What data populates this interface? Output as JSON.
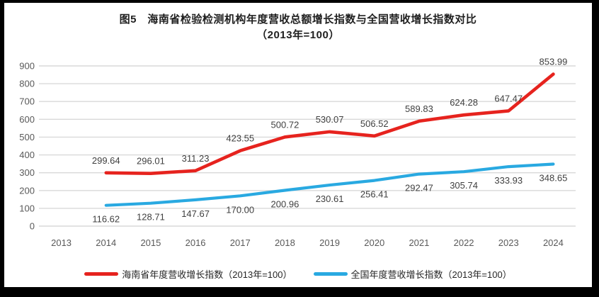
{
  "title": {
    "line1": "图5　海南省检验检测机构年度营收总额增长指数与全国营收增长指数对比",
    "line2": "（2013年=100）"
  },
  "chart_data": {
    "type": "line",
    "categories": [
      "2013",
      "2014",
      "2015",
      "2016",
      "2017",
      "2018",
      "2019",
      "2020",
      "2021",
      "2022",
      "2023",
      "2024"
    ],
    "series": [
      {
        "name": "海南省年度营收增长指数（2013年=100）",
        "color": "#e6231e",
        "label_position": "above",
        "values": [
          null,
          299.64,
          296.01,
          311.23,
          423.55,
          500.72,
          530.07,
          506.52,
          589.83,
          624.28,
          647.47,
          853.99
        ]
      },
      {
        "name": "全国年度营收增长指数（2013年=100）",
        "color": "#29a9e1",
        "label_position": "below",
        "values": [
          null,
          116.62,
          128.71,
          147.67,
          170.0,
          200.96,
          230.61,
          256.41,
          292.47,
          305.74,
          333.93,
          348.65
        ]
      }
    ],
    "ylim": [
      0,
      900
    ],
    "ytick_step": 100,
    "grid": true,
    "legend_position": "bottom",
    "colors": {
      "gridline": "#d9d9d9",
      "axis_label": "#595959",
      "data_label": "#404040"
    }
  }
}
